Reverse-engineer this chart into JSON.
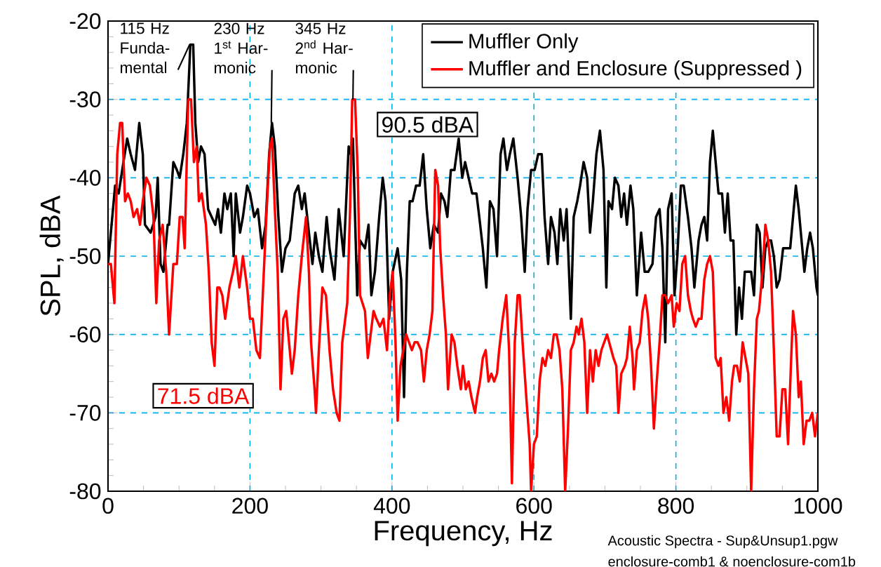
{
  "chart_data": {
    "type": "line",
    "xlabel": "Frequency, Hz",
    "ylabel": "SPL, dBA",
    "xlim": [
      0,
      1000
    ],
    "xticks": [
      0,
      200,
      400,
      600,
      800,
      1000
    ],
    "ylim": [
      -80,
      -20
    ],
    "yticks": [
      -80,
      -70,
      -60,
      -50,
      -40,
      -30,
      -20
    ],
    "grid": true,
    "legend": "top right",
    "series": [
      {
        "name": "Muffler Only",
        "color": "#000000",
        "x": [
          0,
          6,
          10,
          15,
          20,
          27,
          32,
          38,
          44,
          49,
          52,
          60,
          67,
          70,
          74,
          78,
          84,
          86,
          92,
          97,
          101,
          106,
          111,
          116,
          120,
          123,
          127,
          131,
          136,
          141,
          146,
          151,
          155,
          159,
          164,
          168,
          173,
          177,
          180,
          186,
          190,
          196,
          200,
          206,
          211,
          217,
          222,
          227,
          231,
          235,
          240,
          245,
          250,
          256,
          263,
          268,
          273,
          277,
          283,
          288,
          292,
          297,
          302,
          308,
          312,
          319,
          325,
          332,
          339,
          342,
          345,
          351,
          355,
          362,
          367,
          371,
          376,
          382,
          387,
          391,
          396,
          401,
          408,
          413,
          417,
          421,
          425,
          429,
          434,
          439,
          444,
          449,
          454,
          459,
          465,
          469,
          474,
          478,
          483,
          488,
          494,
          499,
          503,
          508,
          513,
          519,
          523,
          528,
          533,
          538,
          543,
          548,
          553,
          557,
          562,
          566,
          571,
          577,
          582,
          587,
          591,
          596,
          601,
          606,
          611,
          615,
          620,
          624,
          629,
          633,
          637,
          642,
          646,
          652,
          656,
          661,
          665,
          670,
          675,
          679,
          683,
          688,
          693,
          698,
          702,
          705,
          710,
          714,
          719,
          723,
          727,
          731,
          736,
          740,
          745,
          751,
          756,
          761,
          767,
          772,
          777,
          781,
          785,
          789,
          794,
          798,
          802,
          807,
          811,
          817,
          822,
          826,
          832,
          836,
          840,
          844,
          848,
          852,
          856,
          860,
          865,
          869,
          873,
          877,
          881,
          885,
          889,
          893,
          897,
          901,
          906,
          910,
          914,
          918,
          922,
          926,
          930,
          934,
          938,
          942,
          946,
          951,
          956,
          961,
          965,
          969,
          973,
          977,
          981,
          985,
          989,
          993,
          998,
          1000
        ],
        "values": [
          -51,
          -45,
          -41,
          -42,
          -39,
          -35,
          -37,
          -39,
          -33,
          -37,
          -46,
          -47,
          -45,
          -40,
          -51,
          -52,
          -46,
          -46,
          -38,
          -39,
          -40,
          -37,
          -33,
          -23,
          -23,
          -33,
          -38,
          -36,
          -37,
          -44,
          -45,
          -46,
          -44,
          -47,
          -42,
          -44,
          -42,
          -50,
          -42,
          -47,
          -45,
          -41,
          -42,
          -45,
          -44,
          -49,
          -46,
          -37,
          -33,
          -36,
          -45,
          -52,
          -49,
          -48,
          -42,
          -41,
          -44,
          -42,
          -47,
          -51,
          -47,
          -50,
          -52,
          -45,
          -49,
          -53,
          -44,
          -50,
          -36,
          -37,
          -35,
          -55,
          -48,
          -49,
          -46,
          -55,
          -52,
          -45,
          -40,
          -43,
          -58,
          -52,
          -49,
          -53,
          -68,
          -52,
          -43,
          -43,
          -41,
          -41,
          -37,
          -44,
          -49,
          -46,
          -47,
          -42,
          -43,
          -45,
          -39,
          -39,
          -35,
          -40,
          -38,
          -40,
          -42,
          -42,
          -45,
          -49,
          -54,
          -43,
          -44,
          -50,
          -37,
          -35,
          -39,
          -37,
          -35,
          -40,
          -45,
          -52,
          -44,
          -39,
          -39,
          -37,
          -37,
          -45,
          -51,
          -45,
          -47,
          -51,
          -44,
          -48,
          -44,
          -58,
          -45,
          -43,
          -41,
          -38,
          -40,
          -47,
          -43,
          -37,
          -34,
          -39,
          -54,
          -43,
          -44,
          -40,
          -41,
          -45,
          -42,
          -46,
          -41,
          -44,
          -55,
          -47,
          -52,
          -52,
          -51,
          -45,
          -44,
          -49,
          -61,
          -44,
          -42,
          -55,
          -50,
          -41,
          -41,
          -45,
          -49,
          -54,
          -48,
          -46,
          -45,
          -48,
          -38,
          -34,
          -38,
          -42,
          -42,
          -47,
          -42,
          -48,
          -48,
          -60,
          -54,
          -58,
          -52,
          -52,
          -52,
          -55,
          -46,
          -47,
          -54,
          -49,
          -48,
          -48,
          -50,
          -54,
          -53,
          -49,
          -49,
          -49,
          -45,
          -41,
          -44,
          -48,
          -52,
          -49,
          -47,
          -49,
          -54,
          -55
        ]
      },
      {
        "name": "Muffler and Enclosure (Suppressed )",
        "color": "#ff0000",
        "x": [
          0,
          4,
          9,
          13,
          17,
          20,
          24,
          28,
          32,
          36,
          41,
          45,
          49,
          54,
          59,
          64,
          68,
          72,
          77,
          82,
          86,
          92,
          97,
          101,
          105,
          108,
          113,
          117,
          121,
          125,
          128,
          132,
          138,
          142,
          146,
          150,
          154,
          157,
          161,
          165,
          171,
          176,
          180,
          185,
          190,
          196,
          200,
          204,
          209,
          214,
          218,
          223,
          228,
          231,
          235,
          239,
          243,
          247,
          251,
          255,
          259,
          263,
          268,
          273,
          279,
          283,
          286,
          291,
          293,
          297,
          302,
          307,
          312,
          317,
          322,
          326,
          330,
          337,
          341,
          344,
          348,
          352,
          355,
          362,
          366,
          370,
          374,
          378,
          383,
          388,
          393,
          397,
          401,
          405,
          408,
          412,
          416,
          420,
          424,
          428,
          432,
          436,
          441,
          445,
          449,
          453,
          457,
          461,
          465,
          468,
          472,
          476,
          479,
          484,
          488,
          492,
          497,
          500,
          504,
          508,
          512,
          517,
          520,
          524,
          528,
          532,
          536,
          540,
          544,
          548,
          551,
          556,
          561,
          565,
          569,
          573,
          577,
          580,
          584,
          590,
          594,
          596,
          600,
          604,
          608,
          612,
          616,
          620,
          624,
          628,
          632,
          636,
          640,
          644,
          648,
          652,
          656,
          660,
          663,
          667,
          671,
          675,
          679,
          683,
          687,
          691,
          695,
          699,
          703,
          709,
          712,
          716,
          719,
          723,
          728,
          731,
          735,
          739,
          741,
          745,
          749,
          753,
          757,
          761,
          765,
          769,
          773,
          777,
          781,
          785,
          789,
          794,
          797,
          801,
          805,
          809,
          813,
          817,
          821,
          824,
          828,
          832,
          836,
          840,
          844,
          848,
          852,
          856,
          860,
          863,
          867,
          871,
          875,
          879,
          882,
          886,
          890,
          894,
          898,
          902,
          906,
          910,
          914,
          917,
          922,
          926,
          930,
          934,
          938,
          942,
          946,
          950,
          954,
          958,
          962,
          965,
          969,
          973,
          976,
          980,
          984,
          988,
          992,
          996,
          1000
        ],
        "values": [
          -51,
          -51,
          -56,
          -37,
          -33,
          -33,
          -43,
          -42,
          -43,
          -45,
          -44,
          -46,
          -43,
          -40,
          -41,
          -45,
          -56,
          -48,
          -46,
          -52,
          -60,
          -51,
          -51,
          -45,
          -45,
          -49,
          -30,
          -30,
          -38,
          -36,
          -43,
          -42,
          -46,
          -52,
          -61,
          -64,
          -54,
          -54,
          -55,
          -58,
          -54,
          -52,
          -50,
          -54,
          -50,
          -54,
          -58,
          -58,
          -62,
          -63,
          -55,
          -45,
          -36,
          -35,
          -44,
          -52,
          -67,
          -58,
          -57,
          -61,
          -65,
          -62,
          -55,
          -50,
          -45,
          -52,
          -61,
          -67,
          -70,
          -62,
          -54,
          -55,
          -62,
          -67,
          -70,
          -71,
          -61,
          -56,
          -44,
          -30,
          -30,
          -40,
          -55,
          -57,
          -63,
          -60,
          -57,
          -58,
          -59,
          -58,
          -62,
          -55,
          -52,
          -61,
          -71,
          -64,
          -62,
          -60,
          -61,
          -62,
          -61,
          -61,
          -62,
          -66,
          -62,
          -60,
          -57,
          -39,
          -41,
          -49,
          -55,
          -60,
          -67,
          -60,
          -61,
          -64,
          -67,
          -64,
          -67,
          -66,
          -68,
          -70,
          -68,
          -66,
          -63,
          -62,
          -66,
          -65,
          -66,
          -65,
          -62,
          -58,
          -55,
          -62,
          -79,
          -61,
          -55,
          -55,
          -61,
          -69,
          -74,
          -80,
          -74,
          -73,
          -66,
          -63,
          -64,
          -62,
          -63,
          -60,
          -60,
          -62,
          -67,
          -80,
          -72,
          -62,
          -61,
          -59,
          -60,
          -58,
          -61,
          -70,
          -62,
          -66,
          -62,
          -64,
          -62,
          -61,
          -60,
          -62,
          -63,
          -64,
          -70,
          -65,
          -64,
          -63,
          -59,
          -63,
          -67,
          -62,
          -61,
          -57,
          -55,
          -58,
          -64,
          -72,
          -66,
          -61,
          -55,
          -55,
          -56,
          -55,
          -59,
          -56,
          -57,
          -51,
          -50,
          -55,
          -57,
          -58,
          -59,
          -58,
          -58,
          -53,
          -51,
          -50,
          -52,
          -63,
          -64,
          -63,
          -70,
          -68,
          -71,
          -66,
          -64,
          -64,
          -66,
          -61,
          -63,
          -65,
          -80,
          -67,
          -58,
          -57,
          -52,
          -46,
          -48,
          -52,
          -62,
          -73,
          -73,
          -67,
          -67,
          -74,
          -64,
          -57,
          -60,
          -68,
          -66,
          -74,
          -71,
          -71,
          -70,
          -73,
          -70
        ]
      }
    ],
    "annotations": [
      {
        "text": "115 Hz Funda- mental",
        "x": 115,
        "y": -23
      },
      {
        "text": "230 Hz 1$^{st}$ Har- monic",
        "x": 230,
        "y": -33
      },
      {
        "text": "345 Hz 2$^{nd}$ Har- monic",
        "x": 345,
        "y": -30
      },
      "90.5 dBA",
      "71.5 dBA",
      "Acoustic Spectra - Sup&Unsup1.pgw",
      "enclosure-comb1 & noenclosure-com1b"
    ]
  }
}
